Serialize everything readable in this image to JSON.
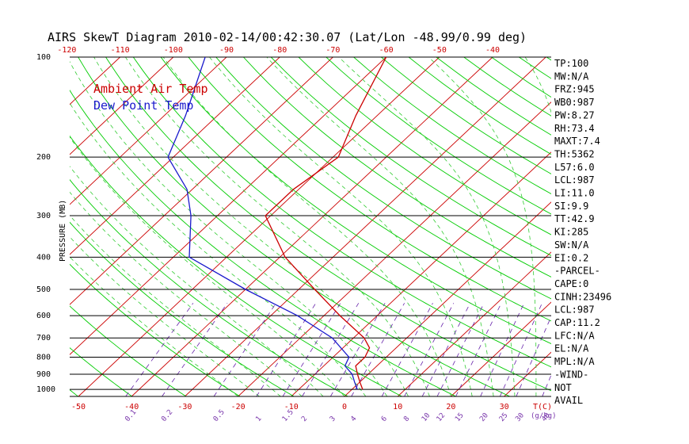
{
  "chart_data": {
    "type": "line",
    "title": "AIRS SkewT Diagram 2010-02-14/00:42:30.07 (Lat/Lon -48.99/0.99 deg)",
    "ylabel": "PRESSURE (MB)",
    "xlabel": "T(C)",
    "mixing_ratio_unit": "(g/kg)",
    "ylim": [
      1050,
      100
    ],
    "xlim": [
      -50,
      40
    ],
    "y_scale": "log",
    "pressure_lines": [
      100,
      200,
      300,
      400,
      500,
      600,
      700,
      800,
      900,
      1000
    ],
    "pressure_labels": [
      "100",
      "200",
      "300",
      "400",
      "500",
      "600",
      "700",
      "800",
      "900",
      "1000"
    ],
    "bottom_temp_ticks": [
      -50,
      -40,
      -30,
      -20,
      -10,
      0,
      10,
      20,
      30
    ],
    "bottom_temp_labels": [
      "-50",
      "-40",
      "-30",
      "-20",
      "-10",
      "0",
      "10",
      "20",
      "30"
    ],
    "top_temp_ticks": [
      -120,
      -110,
      -100,
      -90,
      -80,
      -70,
      -60,
      -50,
      -40
    ],
    "top_temp_labels": [
      "-120",
      "-110",
      "-100",
      "-90",
      "-80",
      "-70",
      "-60",
      "-50",
      "-40"
    ],
    "mixing_ratio_labels": [
      "0.1",
      "0.2",
      "0.5",
      "1",
      "1.5",
      "2",
      "3",
      "4",
      "6",
      "8",
      "10",
      "12",
      "15",
      "20",
      "25",
      "30",
      "40"
    ],
    "mixing_ratio_values": [
      0.1,
      0.2,
      0.5,
      1,
      1.5,
      2,
      3,
      4,
      6,
      8,
      10,
      12,
      15,
      20,
      25,
      30,
      40
    ],
    "legend": [
      {
        "label": "Ambient Air Temp",
        "color": "#cc0000"
      },
      {
        "label": "Dew Point Temp",
        "color": "#1a1acc"
      }
    ],
    "series": [
      {
        "name": "Ambient Air Temp",
        "color": "#cc0000",
        "points": [
          {
            "p": 1000,
            "t": 2
          },
          {
            "p": 950,
            "t": 0
          },
          {
            "p": 900,
            "t": -2
          },
          {
            "p": 850,
            "t": -4
          },
          {
            "p": 800,
            "t": -4
          },
          {
            "p": 750,
            "t": -5
          },
          {
            "p": 700,
            "t": -8
          },
          {
            "p": 600,
            "t": -17
          },
          {
            "p": 500,
            "t": -27
          },
          {
            "p": 400,
            "t": -39
          },
          {
            "p": 300,
            "t": -51
          },
          {
            "p": 250,
            "t": -51
          },
          {
            "p": 200,
            "t": -49
          },
          {
            "p": 150,
            "t": -54
          },
          {
            "p": 100,
            "t": -60
          }
        ]
      },
      {
        "name": "Dew Point Temp",
        "color": "#1a1acc",
        "points": [
          {
            "p": 1000,
            "t": 1
          },
          {
            "p": 950,
            "t": -1
          },
          {
            "p": 900,
            "t": -3
          },
          {
            "p": 850,
            "t": -6
          },
          {
            "p": 800,
            "t": -7
          },
          {
            "p": 700,
            "t": -14
          },
          {
            "p": 600,
            "t": -25
          },
          {
            "p": 500,
            "t": -40
          },
          {
            "p": 400,
            "t": -57
          },
          {
            "p": 300,
            "t": -65
          },
          {
            "p": 250,
            "t": -71
          },
          {
            "p": 200,
            "t": -81
          },
          {
            "p": 150,
            "t": -86
          },
          {
            "p": 100,
            "t": -94
          }
        ]
      }
    ],
    "grid": true
  },
  "indices": [
    "TP:100",
    "MW:N/A",
    "FRZ:945",
    "WB0:987",
    "PW:8.27",
    "RH:73.4",
    "MAXT:7.4",
    "TH:5362",
    "L57:6.0",
    "LCL:987",
    "LI:11.0",
    "SI:9.9",
    "TT:42.9",
    "KI:285",
    "SW:N/A",
    "EI:0.2",
    "-PARCEL-",
    "CAPE:0",
    "CINH:23496",
    "LCL:987",
    "CAP:11.2",
    "LFC:N/A",
    "EL:N/A",
    "MPL:N/A",
    "-WIND-",
    "NOT",
    "AVAIL"
  ],
  "colors": {
    "isotherm": "#cc0000",
    "dry_adiabat": "#00cc00",
    "moist_adiabat": "#33cc33",
    "mixing_ratio": "#6622aa",
    "temp": "#cc0000",
    "dewpoint": "#1a1acc"
  }
}
